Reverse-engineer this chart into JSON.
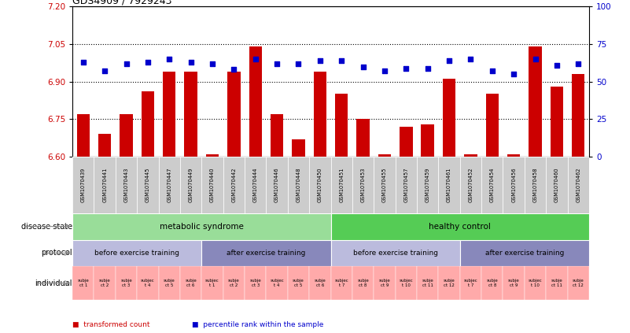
{
  "title": "GDS4909 / 7929243",
  "samples": [
    "GSM1070439",
    "GSM1070441",
    "GSM1070443",
    "GSM1070445",
    "GSM1070447",
    "GSM1070449",
    "GSM1070440",
    "GSM1070442",
    "GSM1070444",
    "GSM1070446",
    "GSM1070448",
    "GSM1070450",
    "GSM1070451",
    "GSM1070453",
    "GSM1070455",
    "GSM1070457",
    "GSM1070459",
    "GSM1070461",
    "GSM1070452",
    "GSM1070454",
    "GSM1070456",
    "GSM1070458",
    "GSM1070460",
    "GSM1070462"
  ],
  "bar_values": [
    6.77,
    6.69,
    6.77,
    6.86,
    6.94,
    6.94,
    6.61,
    6.94,
    7.04,
    6.77,
    6.67,
    6.94,
    6.85,
    6.75,
    6.61,
    6.72,
    6.73,
    6.91,
    6.61,
    6.85,
    6.61,
    7.04,
    6.88,
    6.93
  ],
  "dot_values": [
    63,
    57,
    62,
    63,
    65,
    63,
    62,
    58,
    65,
    62,
    62,
    64,
    64,
    60,
    57,
    59,
    59,
    64,
    65,
    57,
    55,
    65,
    61,
    62
  ],
  "ylim_left": [
    6.6,
    7.2
  ],
  "ylim_right": [
    0,
    100
  ],
  "yticks_left": [
    6.6,
    6.75,
    6.9,
    7.05,
    7.2
  ],
  "yticks_right": [
    0,
    25,
    50,
    75,
    100
  ],
  "hlines": [
    6.75,
    6.9,
    7.05
  ],
  "bar_color": "#cc0000",
  "dot_color": "#0000cc",
  "bg_color": "#ffffff",
  "xtick_bg_color": "#cccccc",
  "disease_spans": [
    {
      "start": 0,
      "end": 12,
      "label": "metabolic syndrome",
      "color": "#99dd99"
    },
    {
      "start": 12,
      "end": 24,
      "label": "healthy control",
      "color": "#55cc55"
    }
  ],
  "protocol_spans": [
    {
      "start": 0,
      "end": 6,
      "label": "before exercise training",
      "color": "#bbbbdd"
    },
    {
      "start": 6,
      "end": 12,
      "label": "after exercise training",
      "color": "#8888bb"
    },
    {
      "start": 12,
      "end": 18,
      "label": "before exercise training",
      "color": "#bbbbdd"
    },
    {
      "start": 18,
      "end": 24,
      "label": "after exercise training",
      "color": "#8888bb"
    }
  ],
  "individual_color": "#ffaaaa",
  "ind_labels": [
    "subje\nct 1",
    "subje\nct 2",
    "subje\nct 3",
    "subjec\nt 4",
    "subje\nct 5",
    "subje\nct 6",
    "subjec\nt 1",
    "subje\nct 2",
    "subje\nct 3",
    "subjec\nt 4",
    "subje\nct 5",
    "subje\nct 6",
    "subjec\nt 7",
    "subje\nct 8",
    "subje\nct 9",
    "subjec\nt 10",
    "subje\nct 11",
    "subje\nct 12",
    "subjec\nt 7",
    "subje\nct 8",
    "subje\nct 9",
    "subjec\nt 10",
    "subje\nct 11",
    "subje\nct 12"
  ],
  "legend_red": "transformed count",
  "legend_blue": "percentile rank within the sample",
  "row_labels": [
    "disease state",
    "protocol",
    "individual"
  ]
}
